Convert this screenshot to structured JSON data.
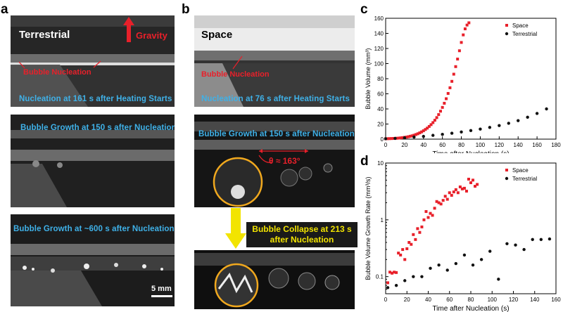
{
  "figure": {
    "panel_labels": [
      "a",
      "b",
      "c",
      "d"
    ],
    "panel_a": {
      "photo1": {
        "title": "Terrestrial",
        "gravity_label": "Gravity",
        "annotation": "Bubble Nucleation",
        "caption": "Nucleation at 161 s after Heating Starts"
      },
      "photo2": {
        "caption": "Bubble Growth at 150 s after Nucleation"
      },
      "photo3": {
        "caption": "Bubble Growth at ~600 s after Nucleation",
        "scale_bar": "5 mm"
      }
    },
    "panel_b": {
      "photo1": {
        "title": "Space",
        "annotation": "Bubble Nucleation",
        "caption": "Nucleation at 76 s after Heating Starts"
      },
      "photo2": {
        "caption": "Bubble Growth at 150 s after Nucleation",
        "angle_label": "θ ≈ 163°"
      },
      "collapse_label_line1": "Bubble Collapse at 213 s",
      "collapse_label_line2": "after Nucleation"
    },
    "colors": {
      "caption_blue": "#3fb1e8",
      "annotation_red": "#e8202a",
      "collapse_yellow": "#f2e400",
      "circle_orange": "#f0a81e",
      "space_series": "#e8202a",
      "terrestrial_series": "#111111"
    }
  },
  "chart_data": [
    {
      "type": "scatter",
      "title": "",
      "xlabel": "Time after Nucleation (s)",
      "ylabel": "Bubble Volume (mm³)",
      "xlim": [
        0,
        180
      ],
      "ylim": [
        0,
        160
      ],
      "xticks": [
        0,
        20,
        40,
        60,
        80,
        100,
        120,
        140,
        160,
        180
      ],
      "yticks": [
        0,
        20,
        40,
        60,
        80,
        100,
        120,
        140,
        160
      ],
      "legend": "top-right",
      "series": [
        {
          "name": "Space",
          "marker": "square",
          "x": [
            0,
            2,
            4,
            6,
            8,
            10,
            12,
            14,
            16,
            18,
            20,
            22,
            24,
            26,
            28,
            30,
            32,
            34,
            36,
            38,
            40,
            42,
            44,
            46,
            48,
            50,
            52,
            54,
            56,
            58,
            60,
            62,
            64,
            66,
            68,
            70,
            72,
            74,
            76,
            78,
            80,
            82,
            84,
            86,
            88
          ],
          "y": [
            0.5,
            0.6,
            0.7,
            0.8,
            0.9,
            1.0,
            1.2,
            1.4,
            1.7,
            2.0,
            2.3,
            2.7,
            3.2,
            3.8,
            4.4,
            5.2,
            6.1,
            7.1,
            8.3,
            9.6,
            11.1,
            12.8,
            14.6,
            16.8,
            19.2,
            21.9,
            25,
            28.5,
            32.5,
            37,
            42,
            47.5,
            53.5,
            60.5,
            68,
            76.5,
            86,
            96,
            106,
            117,
            128,
            138,
            146,
            151,
            154
          ]
        },
        {
          "name": "Terrestrial",
          "marker": "circle",
          "x": [
            0,
            10,
            20,
            30,
            40,
            50,
            60,
            70,
            80,
            90,
            100,
            110,
            120,
            130,
            140,
            150,
            160,
            170
          ],
          "y": [
            0.5,
            1,
            1.8,
            2.7,
            3.7,
            5,
            6.3,
            7.8,
            9.5,
            11.3,
            13.3,
            15.5,
            18,
            21,
            24.5,
            29,
            34,
            40
          ]
        }
      ]
    },
    {
      "type": "scatter",
      "title": "",
      "xlabel": "Time after Nucleation (s)",
      "ylabel": "Bubble Volume Growth Rate (mm³/s)",
      "xlim": [
        0,
        160
      ],
      "ylim": [
        0.05,
        10
      ],
      "yscale": "log",
      "xticks": [
        0,
        20,
        40,
        60,
        80,
        100,
        120,
        140,
        160
      ],
      "yticks": [
        0.1,
        1,
        10
      ],
      "legend": "top-right",
      "series": [
        {
          "name": "Space",
          "marker": "square",
          "x": [
            2,
            4,
            6,
            8,
            10,
            12,
            14,
            16,
            18,
            20,
            22,
            24,
            26,
            28,
            30,
            32,
            34,
            36,
            38,
            40,
            42,
            44,
            46,
            48,
            50,
            52,
            54,
            56,
            58,
            60,
            62,
            64,
            66,
            68,
            70,
            72,
            74,
            76,
            78,
            80,
            82,
            84,
            86
          ],
          "y": [
            0.078,
            0.12,
            0.115,
            0.12,
            0.118,
            0.26,
            0.24,
            0.3,
            0.2,
            0.31,
            0.4,
            0.37,
            0.55,
            0.45,
            0.7,
            0.6,
            0.75,
            1.0,
            1.4,
            1.1,
            1.3,
            1.2,
            1.6,
            2.1,
            2.0,
            1.9,
            2.2,
            2.6,
            2.3,
            3.0,
            2.7,
            3.1,
            3.4,
            3.0,
            3.8,
            3.5,
            3.6,
            3.2,
            5.2,
            4.5,
            5.0,
            3.9,
            4.2
          ]
        },
        {
          "name": "Terrestrial",
          "marker": "circle",
          "x": [
            2,
            10,
            18,
            26,
            34,
            42,
            50,
            58,
            66,
            74,
            82,
            90,
            98,
            106,
            114,
            122,
            130,
            138,
            146,
            154
          ],
          "y": [
            0.064,
            0.07,
            0.085,
            0.1,
            0.1,
            0.14,
            0.16,
            0.13,
            0.17,
            0.24,
            0.16,
            0.2,
            0.28,
            0.09,
            0.38,
            0.36,
            0.3,
            0.45,
            0.45,
            0.46
          ]
        }
      ]
    }
  ]
}
